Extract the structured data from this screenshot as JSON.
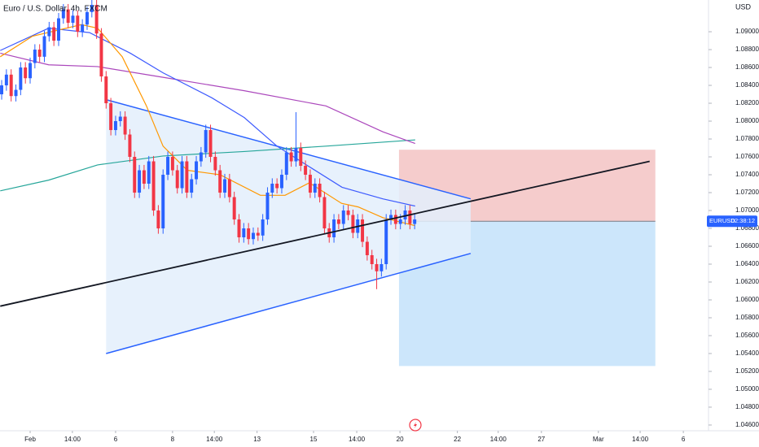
{
  "chart_data": {
    "type": "candlestick",
    "title": "Euro / U.S. Dollar, 4h, FXCM",
    "y_axis_label": "USD",
    "up_color": "#2962ff",
    "down_color": "#f23645",
    "xlim": [
      -6.35,
      142.9
    ],
    "ylim": [
      1.04536,
      1.09355
    ],
    "grid": false,
    "xticks": [
      {
        "value": 0,
        "label": "Feb"
      },
      {
        "value": 8.9,
        "label": "14:00"
      },
      {
        "value": 18,
        "label": "6"
      },
      {
        "value": 30,
        "label": "8"
      },
      {
        "value": 38.8,
        "label": "14:00"
      },
      {
        "value": 47.8,
        "label": "13"
      },
      {
        "value": 59.7,
        "label": "15"
      },
      {
        "value": 68.8,
        "label": "14:00"
      },
      {
        "value": 77.9,
        "label": "20"
      },
      {
        "value": 90,
        "label": "22"
      },
      {
        "value": 98.6,
        "label": "14:00"
      },
      {
        "value": 107.7,
        "label": "27"
      },
      {
        "value": 119.7,
        "label": "Mar"
      },
      {
        "value": 128.5,
        "label": "14:00"
      },
      {
        "value": 137.6,
        "label": "6"
      }
    ],
    "yticks": [
      {
        "value": 1.046,
        "label": "1.04600"
      },
      {
        "value": 1.048,
        "label": "1.04800"
      },
      {
        "value": 1.05,
        "label": "1.05000"
      },
      {
        "value": 1.052,
        "label": "1.05200"
      },
      {
        "value": 1.054,
        "label": "1.05400"
      },
      {
        "value": 1.056,
        "label": "1.05600"
      },
      {
        "value": 1.058,
        "label": "1.05800"
      },
      {
        "value": 1.06,
        "label": "1.06000"
      },
      {
        "value": 1.062,
        "label": "1.06200"
      },
      {
        "value": 1.064,
        "label": "1.06400"
      },
      {
        "value": 1.066,
        "label": "1.06600"
      },
      {
        "value": 1.068,
        "label": "1.06800"
      },
      {
        "value": 1.07,
        "label": "1.07000"
      },
      {
        "value": 1.072,
        "label": "1.07200"
      },
      {
        "value": 1.074,
        "label": "1.07400"
      },
      {
        "value": 1.076,
        "label": "1.07600"
      },
      {
        "value": 1.078,
        "label": "1.07800"
      },
      {
        "value": 1.08,
        "label": "1.08000"
      },
      {
        "value": 1.082,
        "label": "1.08200"
      },
      {
        "value": 1.084,
        "label": "1.08400"
      },
      {
        "value": 1.086,
        "label": "1.08600"
      },
      {
        "value": 1.088,
        "label": "1.08800"
      },
      {
        "value": 1.09,
        "label": "1.09000"
      }
    ],
    "x": [
      -6,
      -5,
      -4,
      -3,
      -2,
      -1,
      0,
      1,
      2,
      3,
      4,
      5,
      6,
      7,
      8,
      9,
      10,
      11,
      12,
      13,
      14,
      15,
      16,
      17,
      18,
      19,
      20,
      21,
      22,
      23,
      24,
      25,
      26,
      27,
      28,
      29,
      30,
      31,
      32,
      33,
      34,
      35,
      36,
      37,
      38,
      39,
      40,
      41,
      42,
      43,
      44,
      45,
      46,
      47,
      48,
      49,
      50,
      51,
      52,
      53,
      54,
      55,
      56,
      57,
      58,
      59,
      60,
      61,
      62,
      63,
      64,
      65,
      66,
      67,
      68,
      69,
      70,
      71,
      72,
      73,
      74,
      75,
      76,
      77,
      78,
      79,
      80,
      81
    ],
    "open": [
      1.083,
      1.084,
      1.0852,
      1.0828,
      1.0835,
      1.086,
      1.0848,
      1.0865,
      1.088,
      1.0872,
      1.0895,
      1.0905,
      1.089,
      1.0915,
      1.0925,
      1.091,
      1.0918,
      1.09,
      1.0908,
      1.0922,
      1.093,
      1.0898,
      1.085,
      1.082,
      1.079,
      1.08,
      1.0805,
      1.0785,
      1.076,
      1.072,
      1.0745,
      1.073,
      1.0755,
      1.07,
      1.068,
      1.074,
      1.076,
      1.0745,
      1.0725,
      1.0755,
      1.072,
      1.0735,
      1.0755,
      1.0765,
      1.079,
      1.076,
      1.0745,
      1.072,
      1.0735,
      1.0715,
      1.069,
      1.067,
      1.068,
      1.0668,
      1.0675,
      1.0672,
      1.069,
      1.072,
      1.073,
      1.0725,
      1.074,
      1.0765,
      1.0755,
      1.077,
      1.075,
      1.074,
      1.072,
      1.073,
      1.0715,
      1.068,
      1.067,
      1.069,
      1.0685,
      1.07,
      1.0695,
      1.0675,
      1.069,
      1.0665,
      1.065,
      1.064,
      1.0632,
      1.064,
      1.069,
      1.0695,
      1.0685,
      1.069,
      1.07,
      1.0685
    ],
    "high": [
      1.0846,
      1.0858,
      1.0858,
      1.0841,
      1.0866,
      1.0866,
      1.0871,
      1.0886,
      1.0886,
      1.0901,
      1.0911,
      1.0911,
      1.0921,
      1.0931,
      1.0931,
      1.0924,
      1.0924,
      1.0914,
      1.0928,
      1.0936,
      1.0936,
      1.0904,
      1.0856,
      1.0826,
      1.0806,
      1.0811,
      1.0811,
      1.0791,
      1.0766,
      1.0751,
      1.0751,
      1.0761,
      1.0761,
      1.0706,
      1.0746,
      1.0766,
      1.0766,
      1.0751,
      1.0761,
      1.0761,
      1.0741,
      1.0761,
      1.0771,
      1.0796,
      1.0796,
      1.0766,
      1.0751,
      1.0741,
      1.0741,
      1.0721,
      1.0696,
      1.0686,
      1.0686,
      1.0681,
      1.0681,
      1.0696,
      1.0726,
      1.0736,
      1.0736,
      1.0746,
      1.0771,
      1.0771,
      1.081,
      1.0776,
      1.0756,
      1.0746,
      1.0736,
      1.0736,
      1.0721,
      1.0686,
      1.0696,
      1.0696,
      1.0706,
      1.0706,
      1.0701,
      1.0696,
      1.0696,
      1.0671,
      1.0656,
      1.0646,
      1.0646,
      1.0696,
      1.0701,
      1.0701,
      1.0696,
      1.0706,
      1.0706,
      1.0696
    ],
    "low": [
      1.0824,
      1.0834,
      1.0822,
      1.0822,
      1.0829,
      1.0842,
      1.0842,
      1.0859,
      1.0866,
      1.0866,
      1.0889,
      1.0884,
      1.0884,
      1.0909,
      1.0904,
      1.0904,
      1.0894,
      1.0894,
      1.0902,
      1.0916,
      1.0892,
      1.0844,
      1.0814,
      1.0784,
      1.0784,
      1.0794,
      1.0779,
      1.0754,
      1.0714,
      1.0714,
      1.0724,
      1.0724,
      1.0694,
      1.0674,
      1.0674,
      1.0734,
      1.0739,
      1.0719,
      1.0719,
      1.0714,
      1.0714,
      1.0729,
      1.0749,
      1.0759,
      1.0754,
      1.0739,
      1.0714,
      1.0714,
      1.0709,
      1.0684,
      1.0664,
      1.0664,
      1.0662,
      1.0662,
      1.0666,
      1.0666,
      1.0684,
      1.0714,
      1.0719,
      1.0719,
      1.0734,
      1.0749,
      1.0749,
      1.0744,
      1.0734,
      1.0714,
      1.0714,
      1.0709,
      1.0674,
      1.0664,
      1.0664,
      1.0679,
      1.0679,
      1.0689,
      1.0669,
      1.0669,
      1.0659,
      1.0644,
      1.0634,
      1.0612,
      1.0626,
      1.0634,
      1.0684,
      1.0679,
      1.0679,
      1.0684,
      1.0679,
      1.0679
    ],
    "close": [
      1.084,
      1.0852,
      1.0828,
      1.0835,
      1.086,
      1.0848,
      1.0865,
      1.088,
      1.0872,
      1.0895,
      1.0905,
      1.089,
      1.0915,
      1.0925,
      1.091,
      1.0918,
      1.09,
      1.0908,
      1.0922,
      1.093,
      1.0898,
      1.085,
      1.082,
      1.079,
      1.08,
      1.0805,
      1.0785,
      1.076,
      1.072,
      1.0745,
      1.073,
      1.0755,
      1.07,
      1.068,
      1.074,
      1.076,
      1.0745,
      1.0725,
      1.0755,
      1.072,
      1.0735,
      1.0755,
      1.0765,
      1.079,
      1.076,
      1.0745,
      1.072,
      1.0735,
      1.0715,
      1.069,
      1.067,
      1.068,
      1.0668,
      1.0675,
      1.0672,
      1.069,
      1.072,
      1.073,
      1.0725,
      1.074,
      1.0765,
      1.0755,
      1.077,
      1.075,
      1.074,
      1.072,
      1.073,
      1.0715,
      1.068,
      1.067,
      1.069,
      1.0685,
      1.07,
      1.0695,
      1.0675,
      1.069,
      1.0665,
      1.065,
      1.064,
      1.0632,
      1.064,
      1.069,
      1.0695,
      1.0685,
      1.069,
      1.07,
      1.0685,
      1.069
    ],
    "series": [
      {
        "color": "#26a69a",
        "x": [
          -6.3,
          3.9,
          14.2,
          28,
          45.1,
          62.3,
          81.1
        ],
        "values": [
          1.0722,
          1.0734,
          1.0751,
          1.0761,
          1.0766,
          1.0772,
          1.0779
        ]
      },
      {
        "color": "#ab47bc",
        "x": [
          -6.3,
          3.9,
          14.2,
          28,
          45.1,
          62.3,
          74.3,
          81.1
        ],
        "values": [
          1.0876,
          1.0863,
          1.0861,
          1.0849,
          1.0834,
          1.0817,
          1.0788,
          1.0775
        ]
      },
      {
        "color": "#3d5afe",
        "x": [
          -6.3,
          3.9,
          12.5,
          21.1,
          28,
          38.3,
          45.1,
          52,
          58.8,
          65.7,
          74.3,
          81.1
        ],
        "values": [
          1.0879,
          1.0904,
          1.0899,
          1.0876,
          1.0854,
          1.0826,
          1.0804,
          1.0772,
          1.0749,
          1.0726,
          1.0713,
          1.0705
        ]
      },
      {
        "color": "#ff9800",
        "x": [
          -6.3,
          0.5,
          10.8,
          14.2,
          19.4,
          24.5,
          28,
          33.1,
          40,
          48.5,
          53.7,
          58.8,
          65.6,
          69.1,
          74.3,
          81.1
        ],
        "values": [
          1.0872,
          1.0895,
          1.0908,
          1.0904,
          1.0872,
          1.0817,
          1.0772,
          1.0745,
          1.074,
          1.0717,
          1.0717,
          1.0731,
          1.0708,
          1.0704,
          1.0692,
          1.0683
        ]
      }
    ],
    "triangle": {
      "fill": "#e3eefc",
      "color": "#2962ff",
      "upper": {
        "x": [
          16,
          92.8
        ],
        "values": [
          1.0824,
          1.0713
        ]
      },
      "lower": {
        "x": [
          16,
          92.8
        ],
        "values": [
          1.054,
          1.0652
        ]
      }
    },
    "trendline": {
      "color": "#131722",
      "x": [
        -6.3,
        130.5
      ],
      "values": [
        1.0593,
        1.0755
      ]
    },
    "position": {
      "x": [
        77.7,
        131.7
      ],
      "stop": 1.0768,
      "entry": 1.0688,
      "target": 1.0526,
      "stop_color": "#f4c7c6",
      "target_color": "#c7e3fb"
    },
    "price_tag": {
      "symbol": "EURUSD",
      "countdown": "02:38:12",
      "value": 1.0688,
      "color": "#2962ff"
    }
  }
}
